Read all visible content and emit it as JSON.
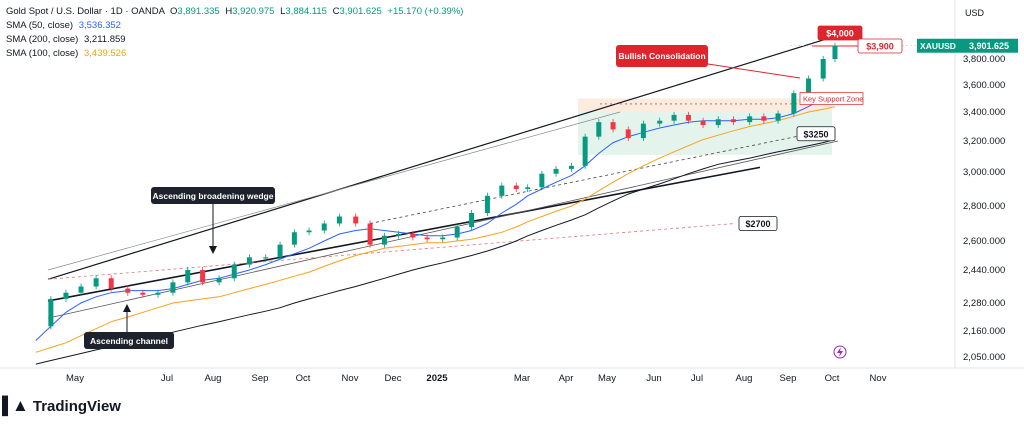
{
  "instrument": {
    "title": "Gold Spot / U.S. Dollar · 1D · OANDA",
    "open_label": "O",
    "open": "3,891.335",
    "high_label": "H",
    "high": "3,920.975",
    "low_label": "L",
    "low": "3,884.115",
    "close_label": "C",
    "close": "3,901.625",
    "change": "+15.170 (+0.39%)",
    "symbol": "XAUUSD",
    "price_tag": "3,901.625",
    "currency": "USD"
  },
  "indicators": [
    {
      "label": "SMA (50, close)",
      "value": "3,536.352",
      "color": "#2962ff"
    },
    {
      "label": "SMA (200, close)",
      "value": "3,211.859",
      "color": "#131722"
    },
    {
      "label": "SMA (100, close)",
      "value": "3,439.526",
      "color": "#f7a21b"
    }
  ],
  "brand": {
    "name": "TradingView"
  },
  "colors": {
    "up": "#089981",
    "down": "#f23645",
    "accent_red": "#e0242e",
    "wedge": "#131722"
  },
  "chart_data": {
    "type": "line",
    "title": "",
    "xlabel": "",
    "ylabel": "",
    "x_ticks": [
      "May",
      "Jul",
      "Aug",
      "Sep",
      "Oct",
      "Nov",
      "Dec",
      "2025",
      "Mar",
      "Apr",
      "May",
      "Jun",
      "Jul",
      "Aug",
      "Sep",
      "Oct",
      "Nov"
    ],
    "y_ticks": [
      "3,800.000",
      "3,600.000",
      "3,400.000",
      "3,200.000",
      "3,000.000",
      "2,800.000",
      "2,600.000",
      "2,440.000",
      "2,280.000",
      "2,160.000",
      "2,050.000"
    ],
    "ylim": [
      2030,
      4080
    ],
    "dates": [
      "2024-04-05",
      "2024-04-15",
      "2024-04-25",
      "2024-05-05",
      "2024-05-15",
      "2024-05-25",
      "2024-06-05",
      "2024-06-15",
      "2024-06-25",
      "2024-07-05",
      "2024-07-15",
      "2024-07-25",
      "2024-08-05",
      "2024-08-15",
      "2024-08-25",
      "2024-09-05",
      "2024-09-15",
      "2024-09-25",
      "2024-10-05",
      "2024-10-15",
      "2024-10-25",
      "2024-11-05",
      "2024-11-15",
      "2024-11-25",
      "2024-12-05",
      "2024-12-15",
      "2024-12-25",
      "2025-01-05",
      "2025-01-15",
      "2025-01-25",
      "2025-02-05",
      "2025-02-15",
      "2025-02-25",
      "2025-03-05",
      "2025-03-15",
      "2025-03-25",
      "2025-04-05",
      "2025-04-15",
      "2025-04-25",
      "2025-05-05",
      "2025-05-15",
      "2025-05-25",
      "2025-06-05",
      "2025-06-15",
      "2025-06-25",
      "2025-07-05",
      "2025-07-15",
      "2025-07-25",
      "2025-08-05",
      "2025-08-15",
      "2025-08-25",
      "2025-09-05",
      "2025-09-15",
      "2025-09-25",
      "2025-10-03"
    ],
    "series": [
      {
        "name": "XAUUSD",
        "values": [
          2180,
          2300,
          2330,
          2360,
          2400,
          2350,
          2330,
          2320,
          2330,
          2380,
          2440,
          2380,
          2400,
          2470,
          2510,
          2510,
          2580,
          2650,
          2660,
          2700,
          2740,
          2700,
          2580,
          2630,
          2640,
          2620,
          2610,
          2620,
          2680,
          2760,
          2860,
          2920,
          2900,
          2910,
          2990,
          3020,
          3040,
          3230,
          3330,
          3280,
          3220,
          3320,
          3340,
          3380,
          3340,
          3310,
          3350,
          3330,
          3370,
          3340,
          3390,
          3540,
          3650,
          3800,
          3902
        ]
      },
      {
        "name": "SMA (50, close)",
        "values": [
          2120,
          2180,
          2240,
          2280,
          2310,
          2330,
          2340,
          2340,
          2340,
          2350,
          2370,
          2390,
          2400,
          2420,
          2440,
          2470,
          2500,
          2530,
          2560,
          2600,
          2640,
          2660,
          2670,
          2660,
          2650,
          2640,
          2630,
          2630,
          2640,
          2660,
          2700,
          2760,
          2810,
          2860,
          2900,
          2940,
          2980,
          3040,
          3120,
          3190,
          3230,
          3260,
          3290,
          3310,
          3330,
          3340,
          3340,
          3340,
          3350,
          3350,
          3360,
          3390,
          3440,
          3500,
          3536
        ]
      },
      {
        "name": "SMA (200, close)",
        "values": [
          2020,
          2035,
          2050,
          2065,
          2080,
          2095,
          2110,
          2125,
          2140,
          2155,
          2170,
          2185,
          2200,
          2215,
          2230,
          2245,
          2260,
          2280,
          2300,
          2320,
          2340,
          2360,
          2380,
          2400,
          2420,
          2440,
          2460,
          2480,
          2500,
          2520,
          2545,
          2570,
          2600,
          2630,
          2660,
          2690,
          2720,
          2750,
          2790,
          2830,
          2870,
          2900,
          2930,
          2960,
          2990,
          3020,
          3050,
          3070,
          3090,
          3110,
          3130,
          3150,
          3170,
          3190,
          3212
        ]
      },
      {
        "name": "SMA (100, close)",
        "values": [
          2070,
          2090,
          2110,
          2140,
          2170,
          2200,
          2220,
          2240,
          2260,
          2280,
          2290,
          2300,
          2310,
          2330,
          2350,
          2370,
          2390,
          2410,
          2430,
          2460,
          2490,
          2520,
          2540,
          2560,
          2570,
          2580,
          2590,
          2590,
          2600,
          2610,
          2630,
          2650,
          2680,
          2710,
          2740,
          2770,
          2800,
          2840,
          2890,
          2940,
          2990,
          3040,
          3090,
          3130,
          3170,
          3210,
          3240,
          3270,
          3300,
          3320,
          3340,
          3370,
          3400,
          3420,
          3440
        ]
      }
    ],
    "annotations": [
      {
        "text": "Ascending broadening wedge",
        "kind": "callout"
      },
      {
        "text": "Ascending channel",
        "kind": "callout"
      },
      {
        "text": "Bullish Consolidation",
        "kind": "callout-red"
      },
      {
        "text": "Key Support Zone",
        "kind": "zone-label"
      },
      {
        "text": "$4,000",
        "kind": "price-label",
        "value": 4000
      },
      {
        "text": "$3,900",
        "kind": "price-label",
        "value": 3900
      },
      {
        "text": "$3250",
        "kind": "price-label",
        "value": 3250
      },
      {
        "text": "$2700",
        "kind": "price-label",
        "value": 2700
      }
    ],
    "key_support_zone": [
      3110,
      3500
    ],
    "grid": false
  }
}
